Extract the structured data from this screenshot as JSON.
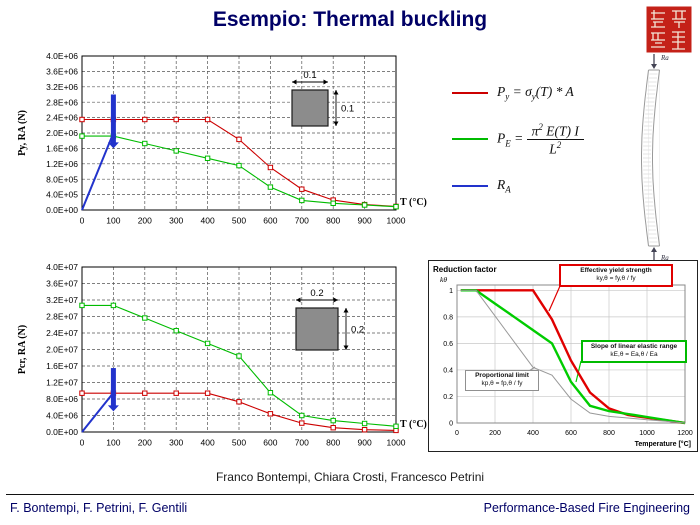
{
  "title": "Esempio: Thermal buckling",
  "credits": "Franco Bontempi, Chiara Crosti, Francesco Petrini",
  "footer": {
    "left": "F. Bontempi, F. Petrini, F. Gentili",
    "right": "Performance-Based Fire Engineering"
  },
  "colors": {
    "title": "#000066",
    "series_red": "#cc0000",
    "series_green": "#00bb00",
    "series_blue": "#2233cc",
    "footer_text": "#000066",
    "seal": "#c42118"
  },
  "legend": {
    "py": {
      "sym": "P",
      "sub": "y",
      "eq": " = ",
      "rhs": "σ",
      "rhs_sub": "y",
      "rhs_tail": "(T) * A"
    },
    "pe": {
      "sym": "P",
      "sub": "E",
      "eq": " = ",
      "num": "π",
      "num_sup": "2",
      "num_tail": " E(T) I",
      "den": "L",
      "den_sup": "2"
    },
    "ra": {
      "sym": "R",
      "sub": "A"
    }
  },
  "column_figure": {
    "top_label": "Ra",
    "bottom_label": "Ra"
  },
  "chart_data": [
    {
      "id": "chart1",
      "type": "line",
      "title": "",
      "xlabel": "T (°C)",
      "ylabel": "Py, RA (N)",
      "xlim": [
        0,
        1000
      ],
      "ylim": [
        0,
        4000000
      ],
      "x_ticks": [
        0,
        100,
        200,
        300,
        400,
        500,
        600,
        700,
        800,
        900,
        1000
      ],
      "y_ticks": [
        {
          "v": 0,
          "label": "0.0E+00"
        },
        {
          "v": 400000,
          "label": "4.0E+05"
        },
        {
          "v": 800000,
          "label": "8.0E+05"
        },
        {
          "v": 1200000,
          "label": "1.2E+06"
        },
        {
          "v": 1600000,
          "label": "1.6E+06"
        },
        {
          "v": 2000000,
          "label": "2.0E+06"
        },
        {
          "v": 2400000,
          "label": "2.4E+06"
        },
        {
          "v": 2800000,
          "label": "2.8E+06"
        },
        {
          "v": 3200000,
          "label": "3.2E+06"
        },
        {
          "v": 3600000,
          "label": "3.6E+06"
        },
        {
          "v": 4000000,
          "label": "4.0E+06"
        }
      ],
      "series": [
        {
          "name": "Py = σy(T) * A",
          "color": "#cc0000",
          "marker": "square",
          "line_width": 1.1,
          "x": [
            0,
            100,
            200,
            300,
            400,
            500,
            600,
            700,
            800,
            900,
            1000
          ],
          "values": [
            2350000,
            2350000,
            2350000,
            2350000,
            2350000,
            1833000,
            1104000,
            540000,
            258000,
            141000,
            94000
          ]
        },
        {
          "name": "PE = π²·E(T)·I / L²",
          "color": "#00bb00",
          "marker": "square",
          "line_width": 1.1,
          "x": [
            0,
            100,
            200,
            300,
            400,
            500,
            600,
            700,
            800,
            900,
            1000
          ],
          "values": [
            1920000,
            1920000,
            1728000,
            1536000,
            1344000,
            1152000,
            595000,
            250000,
            173000,
            130000,
            86000
          ]
        },
        {
          "name": "RA",
          "color": "#2233cc",
          "marker": "none",
          "line_width": 2,
          "x": [
            0,
            100
          ],
          "values": [
            0,
            2000000
          ]
        }
      ],
      "arrow": {
        "x": 100,
        "y_from": 3000000,
        "y_to": 1600000,
        "color": "#2233cc"
      },
      "inset": {
        "width_label": "0.1",
        "height_label": "0.1"
      }
    },
    {
      "id": "chart2",
      "type": "line",
      "title": "",
      "xlabel": "T (°C)",
      "ylabel": "Pcr, RA (N)",
      "xlim": [
        0,
        1000
      ],
      "ylim": [
        0,
        40000000
      ],
      "x_ticks": [
        0,
        100,
        200,
        300,
        400,
        500,
        600,
        700,
        800,
        900,
        1000
      ],
      "y_ticks": [
        {
          "v": 0,
          "label": "0.0E+00"
        },
        {
          "v": 4000000,
          "label": "4.0E+06"
        },
        {
          "v": 8000000,
          "label": "8.0E+06"
        },
        {
          "v": 12000000,
          "label": "1.2E+07"
        },
        {
          "v": 16000000,
          "label": "1.6E+07"
        },
        {
          "v": 20000000,
          "label": "2.0E+07"
        },
        {
          "v": 24000000,
          "label": "2.4E+07"
        },
        {
          "v": 28000000,
          "label": "2.8E+07"
        },
        {
          "v": 32000000,
          "label": "3.2E+07"
        },
        {
          "v": 36000000,
          "label": "3.6E+07"
        },
        {
          "v": 40000000,
          "label": "4.0E+07"
        }
      ],
      "series": [
        {
          "name": "Py = σy(T) * A",
          "color": "#cc0000",
          "marker": "square",
          "line_width": 1.1,
          "x": [
            0,
            100,
            200,
            300,
            400,
            500,
            600,
            700,
            800,
            900,
            1000
          ],
          "values": [
            9400000,
            9400000,
            9400000,
            9400000,
            9400000,
            7332000,
            4418000,
            2162000,
            1034000,
            564000,
            376000
          ]
        },
        {
          "name": "PE = π²·E(T)·I / L²",
          "color": "#00bb00",
          "marker": "square",
          "line_width": 1.1,
          "x": [
            0,
            100,
            200,
            300,
            400,
            500,
            600,
            700,
            800,
            900,
            1000
          ],
          "values": [
            30700000,
            30700000,
            27630000,
            24560000,
            21490000,
            18420000,
            9517000,
            3991000,
            2763000,
            2072000,
            1382000
          ]
        },
        {
          "name": "RA",
          "color": "#2233cc",
          "marker": "none",
          "line_width": 2,
          "x": [
            0,
            100
          ],
          "values": [
            0,
            9500000
          ]
        }
      ],
      "arrow": {
        "x": 100,
        "y_from": 15500000,
        "y_to": 5000000,
        "color": "#2233cc"
      },
      "inset": {
        "width_label": "0.2",
        "height_label": "0.2"
      }
    },
    {
      "id": "chart3",
      "type": "line",
      "title": "Reduction factor",
      "xlabel": "Temperature [°C]",
      "ylabel": "kθ",
      "xlim": [
        0,
        1200
      ],
      "ylim": [
        0,
        1.04
      ],
      "x_ticks": [
        0,
        200,
        400,
        600,
        800,
        1000,
        1200
      ],
      "y_ticks": [
        {
          "v": 0,
          "label": "0"
        },
        {
          "v": 0.2,
          "label": "0.2"
        },
        {
          "v": 0.4,
          "label": "0.4"
        },
        {
          "v": 0.6,
          "label": "0.6"
        },
        {
          "v": 0.8,
          "label": "0.8"
        },
        {
          "v": 1,
          "label": "1"
        }
      ],
      "series": [
        {
          "name": "Effective yield strength ky,θ",
          "color": "#e00000",
          "marker": "none",
          "line_width": 2.4,
          "x": [
            20,
            100,
            200,
            300,
            400,
            500,
            600,
            700,
            800,
            900,
            1000,
            1100,
            1200
          ],
          "values": [
            1,
            1,
            1,
            1,
            1,
            0.78,
            0.47,
            0.23,
            0.11,
            0.06,
            0.04,
            0.02,
            0
          ]
        },
        {
          "name": "Slope of linear elastic range kE,θ",
          "color": "#00cc00",
          "marker": "none",
          "line_width": 2.4,
          "x": [
            20,
            100,
            200,
            300,
            400,
            500,
            600,
            700,
            800,
            900,
            1000,
            1100,
            1200
          ],
          "values": [
            1,
            1,
            0.9,
            0.8,
            0.7,
            0.6,
            0.31,
            0.13,
            0.09,
            0.0675,
            0.045,
            0.0225,
            0
          ]
        },
        {
          "name": "Proportional limit kp,θ",
          "color": "#999999",
          "marker": "none",
          "line_width": 1,
          "x": [
            20,
            100,
            200,
            300,
            400,
            500,
            600,
            700,
            800,
            900,
            1000,
            1100,
            1200
          ],
          "values": [
            1,
            1,
            0.807,
            0.613,
            0.42,
            0.36,
            0.18,
            0.075,
            0.05,
            0.0375,
            0.025,
            0.0125,
            0
          ]
        }
      ],
      "annotations": {
        "yield": {
          "line1": "Effective yield strength",
          "line2": "ky,θ = fy,θ / fy",
          "color": "#e00000"
        },
        "elastic": {
          "line1": "Slope of linear elastic range",
          "line2": "kE,θ = Ea,θ / Ea",
          "color": "#00bb00"
        },
        "proportional": {
          "line1": "Proportional limit",
          "line2": "kp,θ = fp,θ / fy",
          "color": "#909090"
        }
      }
    }
  ]
}
